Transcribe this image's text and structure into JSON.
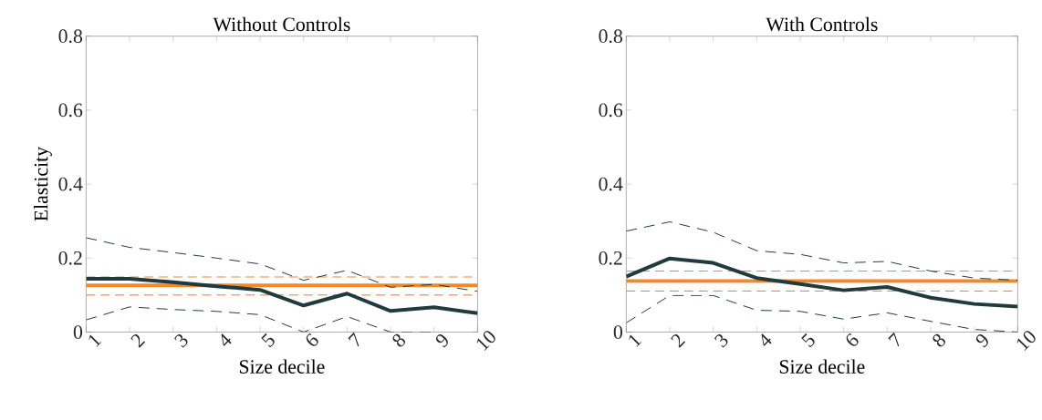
{
  "chart_data": [
    {
      "type": "line",
      "title": "Without Controls",
      "xlabel": "Size decile",
      "ylabel": "Elasticity",
      "x": [
        1,
        2,
        3,
        4,
        5,
        6,
        7,
        8,
        9,
        10
      ],
      "xlim": [
        1,
        10
      ],
      "xticks": [
        1,
        2,
        3,
        4,
        5,
        6,
        7,
        8,
        9,
        10
      ],
      "ylim": [
        0,
        0.8
      ],
      "yticks": [
        0,
        0.2,
        0.4,
        0.6,
        0.8
      ],
      "grid": false,
      "legend": false,
      "marker": "none",
      "series": [
        {
          "color": "#213a3e",
          "line_style": "solid",
          "values": [
            0.144,
            0.144,
            0.135,
            0.124,
            0.114,
            0.072,
            0.104,
            0.057,
            0.067,
            0.051
          ]
        },
        {
          "color": "#213a3e",
          "line_style": "dashed",
          "values": [
            0.255,
            0.229,
            0.215,
            0.2,
            0.184,
            0.14,
            0.167,
            0.121,
            0.129,
            0.11
          ]
        },
        {
          "color": "#213a3e",
          "line_style": "dashed",
          "values": [
            0.033,
            0.068,
            0.061,
            0.056,
            0.047,
            0,
            0.042,
            0,
            0,
            null
          ]
        }
      ],
      "ref_lines": [
        {
          "axis": "y",
          "value": 0.126,
          "color": "#ef8a2b",
          "line_style": "solid"
        },
        {
          "axis": "y",
          "value": 0.149,
          "color": "#ef8a2b",
          "line_style": "dashed"
        },
        {
          "axis": "y",
          "value": 0.1,
          "color": "#ef8a2b",
          "line_style": "dashed"
        }
      ]
    },
    {
      "type": "line",
      "title": "With Controls",
      "xlabel": "Size decile",
      "x": [
        1,
        2,
        3,
        4,
        5,
        6,
        7,
        8,
        9,
        10
      ],
      "xlim": [
        1,
        10
      ],
      "xticks": [
        1,
        2,
        3,
        4,
        5,
        6,
        7,
        8,
        9,
        10
      ],
      "ylim": [
        0,
        0.8
      ],
      "yticks": [
        0,
        0.2,
        0.4,
        0.6,
        0.8
      ],
      "grid": false,
      "legend": false,
      "marker": "none",
      "series": [
        {
          "color": "#213a3e",
          "line_style": "solid",
          "values": [
            0.15,
            0.199,
            0.187,
            0.146,
            0.13,
            0.113,
            0.122,
            0.093,
            0.076,
            0.069
          ]
        },
        {
          "color": "#213a3e",
          "line_style": "dashed",
          "values": [
            0.273,
            0.298,
            0.27,
            0.22,
            0.21,
            0.187,
            0.191,
            0.165,
            0.146,
            0.14
          ]
        },
        {
          "color": "#213a3e",
          "line_style": "dashed",
          "values": [
            0.025,
            0.099,
            0.099,
            0.059,
            0.056,
            0.035,
            0.052,
            0.029,
            0.007,
            0
          ]
        }
      ],
      "ref_lines": [
        {
          "axis": "y",
          "value": 0.138,
          "color": "#ef8a2b",
          "line_style": "solid"
        },
        {
          "axis": "y",
          "value": 0.165,
          "color": "#ef8a2b",
          "line_style": "dashed"
        },
        {
          "axis": "y",
          "value": 0.111,
          "color": "#ef8a2b",
          "line_style": "dashed"
        }
      ]
    }
  ]
}
